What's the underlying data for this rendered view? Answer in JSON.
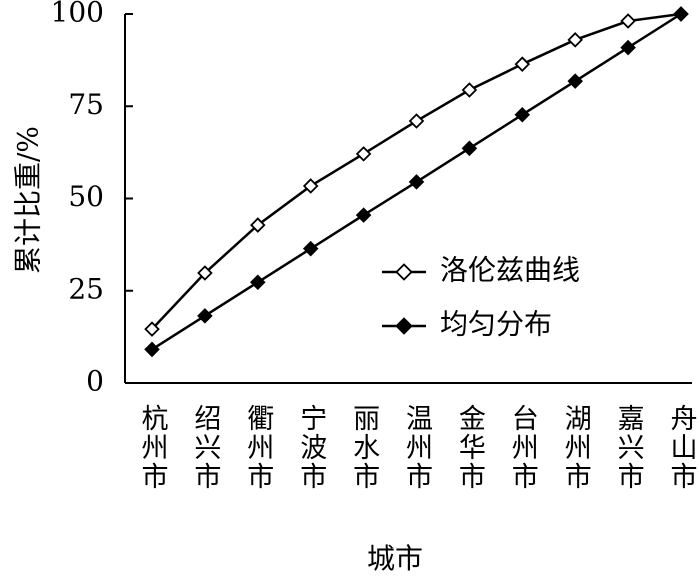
{
  "chart_data": {
    "type": "line",
    "xlabel": "城市",
    "ylabel": "累计比重/%",
    "categories": [
      "杭州市",
      "绍兴市",
      "衢州市",
      "宁波市",
      "丽水市",
      "温州市",
      "金华市",
      "台州市",
      "湖州市",
      "嘉兴市",
      "舟山市"
    ],
    "series": [
      {
        "name": "洛伦兹曲线",
        "color": "#000000",
        "marker": "diamond",
        "marker_fill": "#ffffff",
        "values": [
          14.6,
          29.8,
          42.8,
          53.4,
          62.1,
          71.0,
          79.4,
          86.4,
          93.0,
          98.1,
          100
        ]
      },
      {
        "name": "均匀分布",
        "color": "#000000",
        "marker": "diamond",
        "marker_fill": "#000000",
        "values": [
          9.1,
          18.2,
          27.3,
          36.4,
          45.5,
          54.5,
          63.6,
          72.7,
          81.8,
          90.9,
          100
        ]
      }
    ],
    "ylim": [
      0,
      100
    ],
    "yticks": [
      0,
      25,
      50,
      75,
      100
    ],
    "grid": false,
    "legend": "center right"
  }
}
